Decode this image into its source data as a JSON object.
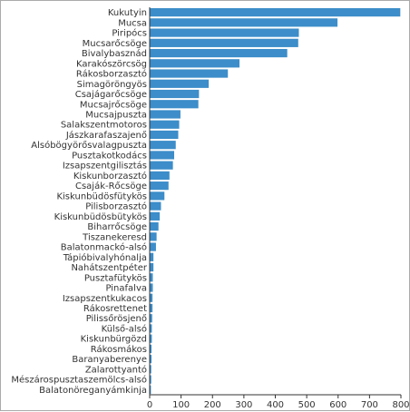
{
  "chart_data": {
    "type": "bar",
    "orientation": "horizontal",
    "categories": [
      "Kukutyin",
      "Mucsa",
      "Piripócs",
      "Mucsarőcsöge",
      "Bivalybasznád",
      "Karakószörcsög",
      "Rákosborzasztó",
      "Simagöröngyös",
      "Csajágarőcsöge",
      "Mucsajrőcsöge",
      "Mucsajpuszta",
      "Salakszentmotoros",
      "Jászkarafaszajenő",
      "Alsóbögyörősvalagpuszta",
      "Pusztakotkodács",
      "Izsapszentgilisztás",
      "Kiskunborzasztó",
      "Csaják-Rőcsöge",
      "Kiskunbüdösfütykös",
      "Pilisborzasztó",
      "Kiskunbüdösbütykös",
      "Biharrőcsöge",
      "Tiszanekeresd",
      "Balatonmackó-alsó",
      "Tápióbivalyhónalja",
      "Nahátszentpéter",
      "Pusztafütykös",
      "Pinafalva",
      "Izsapszentkukacos",
      "Rákosrettenet",
      "Pilissőrösjenő",
      "Külső-alsó",
      "Kiskunbürgözd",
      "Rákosmákos",
      "Baranyaberenye",
      "Zalarottyantó",
      "Mészárospusztaszemölcs-alsó",
      "Balatonöreganyámkinja"
    ],
    "values": [
      798,
      598,
      475,
      473,
      438,
      286,
      249,
      188,
      157,
      155,
      98,
      94,
      91,
      83,
      78,
      74,
      63,
      60,
      47,
      36,
      32,
      28,
      22,
      20,
      12,
      12,
      10,
      10,
      9,
      9,
      8,
      7,
      7,
      6,
      6,
      5,
      5,
      4
    ],
    "xlim": [
      0,
      800
    ],
    "xticks": [
      0,
      100,
      200,
      300,
      400,
      500,
      600,
      700,
      800
    ],
    "grid": false,
    "bar_color": "#3c8dc9"
  }
}
